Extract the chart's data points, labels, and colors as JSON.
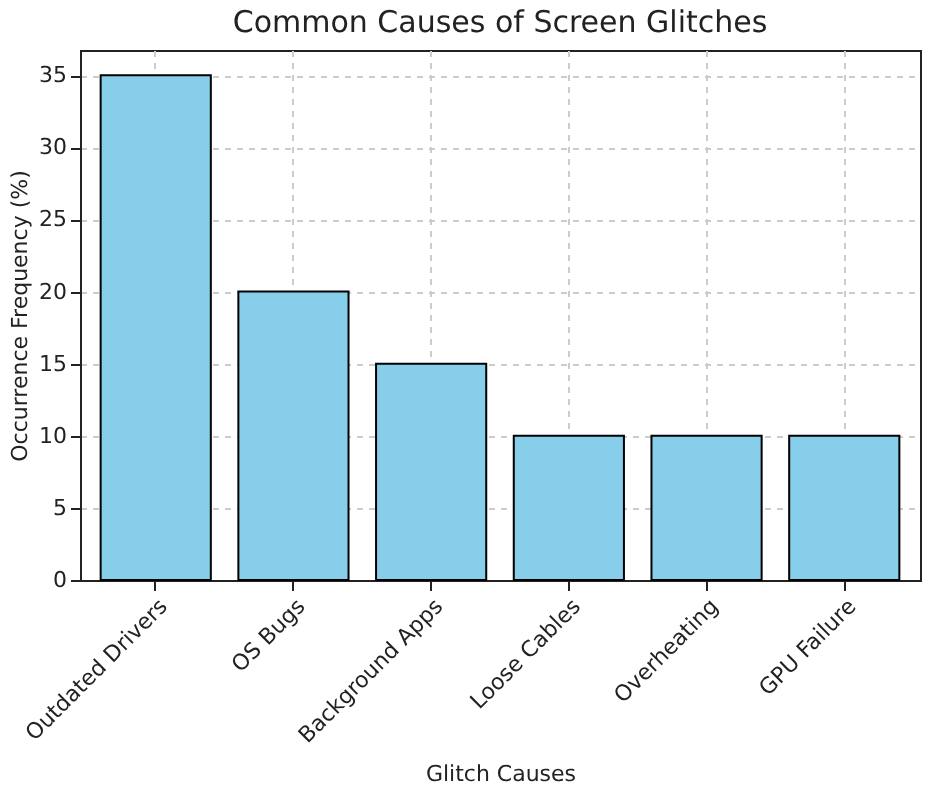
{
  "chart_data": {
    "type": "bar",
    "title": "Common Causes of Screen Glitches",
    "xlabel": "Glitch Causes",
    "ylabel": "Occurrence Frequency (%)",
    "categories": [
      "Outdated Drivers",
      "OS Bugs",
      "Background Apps",
      "Loose Cables",
      "Overheating",
      "GPU Failure"
    ],
    "values": [
      35,
      20,
      15,
      10,
      10,
      10
    ],
    "color": "#87ceeb",
    "ylim": [
      0,
      36.75
    ],
    "yticks": [
      0,
      5,
      10,
      15,
      20,
      25,
      30,
      35
    ],
    "grid": true
  }
}
